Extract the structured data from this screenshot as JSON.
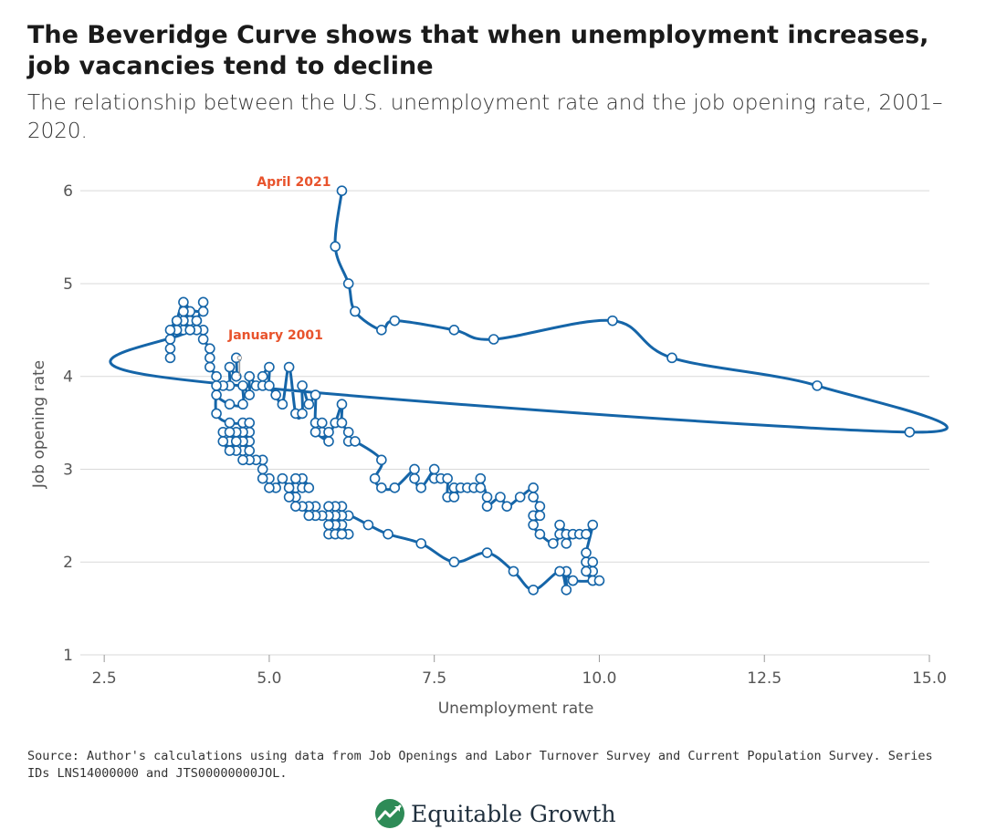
{
  "header": {
    "title": "The Beveridge Curve shows that when unemployment increases, job vacancies tend to decline",
    "subtitle": "The relationship between the U.S. unemployment rate and the job opening rate, 2001–2020."
  },
  "footer": {
    "source": "Source: Author's calculations using data from Job Openings and Labor Turnover Survey and Current Population Survey. Series IDs LNS14000000 and JTS00000000JOL.",
    "brand": "Equitable Growth"
  },
  "colors": {
    "line": "#1565a8",
    "marker_fill": "#ffffff",
    "annotation": "#e8532c",
    "grid": "#d9d9d9"
  },
  "icons": {
    "logo": "equitable-growth-logo-icon"
  },
  "chart_data": {
    "type": "line",
    "xlabel": "Unemployment rate",
    "ylabel": "Job opening rate",
    "xlim": [
      2.0,
      15.0
    ],
    "ylim": [
      1,
      6.1
    ],
    "xticks": [
      "2.5",
      "5.0",
      "7.5",
      "10.0",
      "12.5",
      "15.0"
    ],
    "yticks": [
      "1",
      "2",
      "3",
      "4",
      "5",
      "6"
    ],
    "grid": "horizontal",
    "annotations": [
      {
        "text": "January 2001",
        "x": 4.55,
        "y": 4.2
      },
      {
        "text": "April 2021",
        "x": 6.1,
        "y": 6.0
      }
    ],
    "series": [
      {
        "points": [
          [
            4.5,
            4.2
          ],
          [
            4.5,
            4.0
          ],
          [
            4.4,
            4.1
          ],
          [
            4.4,
            3.9
          ],
          [
            4.3,
            3.9
          ],
          [
            4.2,
            3.8
          ],
          [
            4.4,
            3.7
          ],
          [
            4.6,
            3.7
          ],
          [
            4.6,
            3.9
          ],
          [
            4.7,
            3.8
          ],
          [
            4.7,
            4.0
          ],
          [
            4.8,
            3.9
          ],
          [
            4.9,
            3.9
          ],
          [
            4.9,
            4.0
          ],
          [
            5.0,
            4.1
          ],
          [
            5.0,
            3.9
          ],
          [
            5.1,
            3.8
          ],
          [
            5.2,
            3.7
          ],
          [
            5.3,
            4.1
          ],
          [
            5.4,
            3.6
          ],
          [
            5.5,
            3.6
          ],
          [
            5.5,
            3.9
          ],
          [
            5.6,
            3.7
          ],
          [
            5.7,
            3.8
          ],
          [
            5.7,
            3.5
          ],
          [
            5.8,
            3.5
          ],
          [
            5.8,
            3.4
          ],
          [
            5.9,
            3.3
          ],
          [
            5.7,
            3.4
          ],
          [
            5.9,
            3.4
          ],
          [
            6.0,
            3.5
          ],
          [
            6.1,
            3.7
          ],
          [
            6.1,
            3.5
          ],
          [
            6.2,
            3.4
          ],
          [
            6.2,
            3.3
          ],
          [
            6.3,
            3.3
          ],
          [
            6.7,
            3.1
          ],
          [
            6.6,
            2.9
          ],
          [
            6.7,
            2.8
          ],
          [
            6.9,
            2.8
          ],
          [
            7.2,
            3.0
          ],
          [
            7.2,
            2.9
          ],
          [
            7.3,
            2.8
          ],
          [
            7.5,
            3.0
          ],
          [
            7.5,
            2.9
          ],
          [
            7.6,
            2.9
          ],
          [
            7.7,
            2.9
          ],
          [
            7.7,
            2.7
          ],
          [
            7.8,
            2.8
          ],
          [
            7.8,
            2.7
          ],
          [
            7.9,
            2.8
          ],
          [
            8.0,
            2.8
          ],
          [
            8.1,
            2.8
          ],
          [
            8.2,
            2.8
          ],
          [
            8.2,
            2.9
          ],
          [
            8.3,
            2.7
          ],
          [
            8.3,
            2.6
          ],
          [
            8.5,
            2.7
          ],
          [
            8.6,
            2.6
          ],
          [
            8.8,
            2.7
          ],
          [
            9.0,
            2.8
          ],
          [
            9.0,
            2.7
          ],
          [
            9.1,
            2.6
          ],
          [
            9.0,
            2.5
          ],
          [
            9.1,
            2.5
          ],
          [
            9.0,
            2.4
          ],
          [
            9.1,
            2.3
          ],
          [
            9.3,
            2.2
          ],
          [
            9.4,
            2.3
          ],
          [
            9.4,
            2.4
          ],
          [
            9.5,
            2.3
          ],
          [
            9.5,
            2.2
          ],
          [
            9.6,
            2.3
          ],
          [
            9.7,
            2.3
          ],
          [
            9.8,
            2.3
          ],
          [
            9.9,
            2.4
          ],
          [
            9.8,
            2.1
          ],
          [
            9.8,
            2.0
          ],
          [
            9.9,
            2.0
          ],
          [
            9.9,
            1.9
          ],
          [
            9.8,
            1.9
          ],
          [
            9.9,
            1.8
          ],
          [
            10.0,
            1.8
          ],
          [
            9.6,
            1.8
          ],
          [
            9.5,
            1.9
          ],
          [
            9.5,
            1.7
          ],
          [
            9.4,
            1.9
          ],
          [
            9.0,
            1.7
          ],
          [
            8.7,
            1.9
          ],
          [
            8.3,
            2.1
          ],
          [
            7.8,
            2.0
          ],
          [
            7.3,
            2.2
          ],
          [
            6.8,
            2.3
          ],
          [
            6.5,
            2.4
          ],
          [
            6.2,
            2.5
          ],
          [
            6.1,
            2.4
          ],
          [
            6.2,
            2.3
          ],
          [
            6.0,
            2.4
          ],
          [
            6.1,
            2.5
          ],
          [
            6.0,
            2.5
          ],
          [
            5.9,
            2.4
          ],
          [
            5.9,
            2.3
          ],
          [
            6.0,
            2.3
          ],
          [
            6.1,
            2.3
          ],
          [
            6.1,
            2.6
          ],
          [
            6.0,
            2.6
          ],
          [
            5.9,
            2.6
          ],
          [
            5.9,
            2.5
          ],
          [
            5.8,
            2.5
          ],
          [
            5.7,
            2.5
          ],
          [
            5.7,
            2.6
          ],
          [
            5.6,
            2.6
          ],
          [
            5.6,
            2.5
          ],
          [
            5.5,
            2.6
          ],
          [
            5.4,
            2.6
          ],
          [
            5.4,
            2.7
          ],
          [
            5.3,
            2.7
          ],
          [
            5.4,
            2.8
          ],
          [
            5.5,
            2.8
          ],
          [
            5.6,
            2.8
          ],
          [
            5.5,
            2.9
          ],
          [
            5.4,
            2.9
          ],
          [
            5.3,
            2.8
          ],
          [
            5.2,
            2.9
          ],
          [
            5.1,
            2.8
          ],
          [
            5.0,
            2.8
          ],
          [
            5.0,
            2.9
          ],
          [
            4.9,
            2.9
          ],
          [
            4.9,
            3.0
          ],
          [
            4.9,
            3.1
          ],
          [
            4.8,
            3.1
          ],
          [
            4.7,
            3.1
          ],
          [
            4.6,
            3.1
          ],
          [
            4.6,
            3.2
          ],
          [
            4.7,
            3.3
          ],
          [
            4.7,
            3.2
          ],
          [
            4.6,
            3.3
          ],
          [
            4.7,
            3.4
          ],
          [
            4.6,
            3.4
          ],
          [
            4.5,
            3.4
          ],
          [
            4.4,
            3.3
          ],
          [
            4.5,
            3.2
          ],
          [
            4.4,
            3.2
          ],
          [
            4.3,
            3.3
          ],
          [
            4.3,
            3.4
          ],
          [
            4.4,
            3.4
          ],
          [
            4.5,
            3.3
          ],
          [
            4.6,
            3.5
          ],
          [
            4.7,
            3.5
          ],
          [
            4.4,
            3.5
          ],
          [
            4.2,
            3.6
          ],
          [
            4.2,
            3.9
          ],
          [
            4.2,
            4.0
          ],
          [
            4.1,
            4.1
          ],
          [
            4.1,
            4.2
          ],
          [
            4.1,
            4.3
          ],
          [
            4.0,
            4.4
          ],
          [
            4.0,
            4.5
          ],
          [
            3.9,
            4.5
          ],
          [
            3.9,
            4.6
          ],
          [
            3.8,
            4.6
          ],
          [
            3.8,
            4.5
          ],
          [
            3.7,
            4.6
          ],
          [
            3.7,
            4.5
          ],
          [
            3.6,
            4.5
          ],
          [
            3.6,
            4.6
          ],
          [
            3.5,
            4.5
          ],
          [
            3.5,
            4.4
          ],
          [
            3.5,
            4.2
          ],
          [
            3.5,
            4.3
          ],
          [
            3.6,
            4.6
          ],
          [
            3.7,
            4.8
          ],
          [
            3.8,
            4.7
          ],
          [
            3.9,
            4.6
          ],
          [
            4.0,
            4.8
          ],
          [
            4.0,
            4.7
          ],
          [
            3.7,
            4.7
          ],
          [
            3.8,
            4.5
          ],
          [
            3.3,
            4.0
          ],
          [
            14.7,
            3.4
          ],
          [
            13.3,
            3.9
          ],
          [
            11.1,
            4.2
          ],
          [
            10.2,
            4.6
          ],
          [
            8.4,
            4.4
          ],
          [
            7.8,
            4.5
          ],
          [
            6.9,
            4.6
          ],
          [
            6.7,
            4.5
          ],
          [
            6.3,
            4.7
          ],
          [
            6.2,
            5.0
          ],
          [
            6.0,
            5.4
          ],
          [
            6.1,
            6.0
          ]
        ],
        "unmarked_points": [
          [
            3.3,
            4.0
          ]
        ]
      }
    ]
  }
}
